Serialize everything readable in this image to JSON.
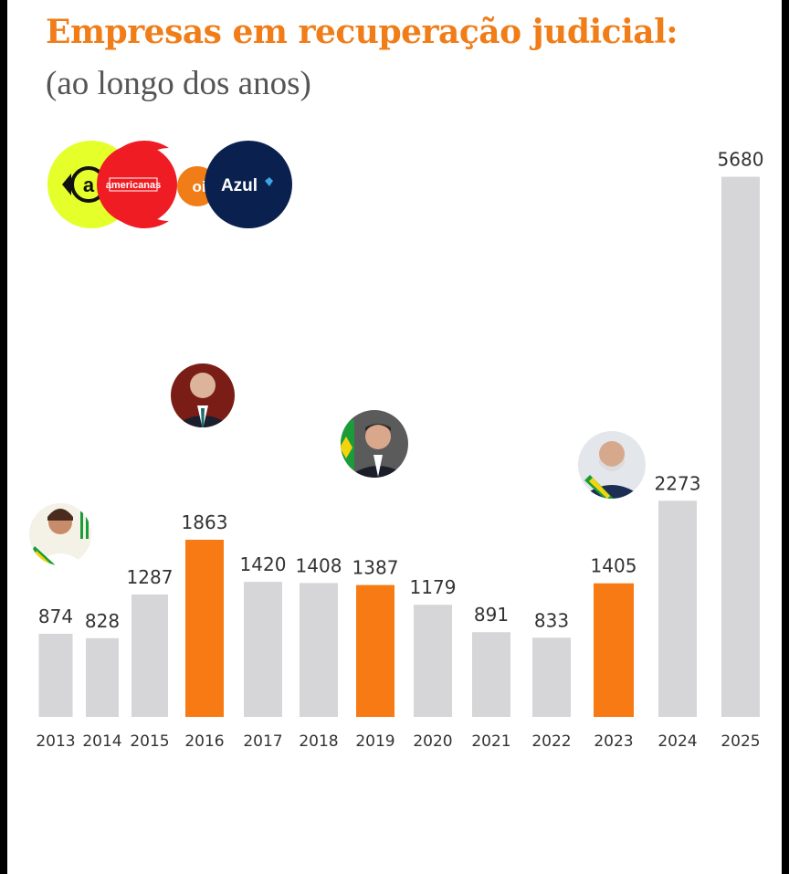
{
  "title": "Empresas em recuperação judicial:",
  "subtitle": "(ao longo dos anos)",
  "logos": [
    {
      "icon": "americanas-a-icon",
      "text": "americanas",
      "color": "#e4ff2a"
    },
    {
      "icon": "americanas-logo-icon",
      "text": "americanas",
      "color": "#ef1c24"
    },
    {
      "icon": "oi-logo-icon",
      "text": "oi",
      "color": "#f07d18"
    },
    {
      "icon": "azul-logo-icon",
      "text": "Azul",
      "color": "#0a2150"
    }
  ],
  "portraits": [
    {
      "icon": "president-2013-portrait-icon",
      "year": "2013"
    },
    {
      "icon": "president-2016-portrait-icon",
      "year": "2016"
    },
    {
      "icon": "president-2019-portrait-icon",
      "year": "2019"
    },
    {
      "icon": "president-2023-portrait-icon",
      "year": "2023"
    }
  ],
  "chart_data": {
    "type": "bar",
    "title": "Empresas em recuperação judicial:",
    "subtitle": "(ao longo dos anos)",
    "categories": [
      "2013",
      "2014",
      "2015",
      "2016",
      "2017",
      "2018",
      "2019",
      "2020",
      "2021",
      "2022",
      "2023",
      "2024",
      "2025"
    ],
    "values": [
      874,
      828,
      1287,
      1863,
      1420,
      1408,
      1387,
      1179,
      891,
      833,
      1405,
      2273,
      5680
    ],
    "highlighted": [
      "2016",
      "2019",
      "2023"
    ],
    "colors": {
      "default": "#d6d5d7",
      "highlight": "#f77a14"
    },
    "xlabel": "",
    "ylabel": "",
    "grid": false,
    "legend": "none"
  }
}
